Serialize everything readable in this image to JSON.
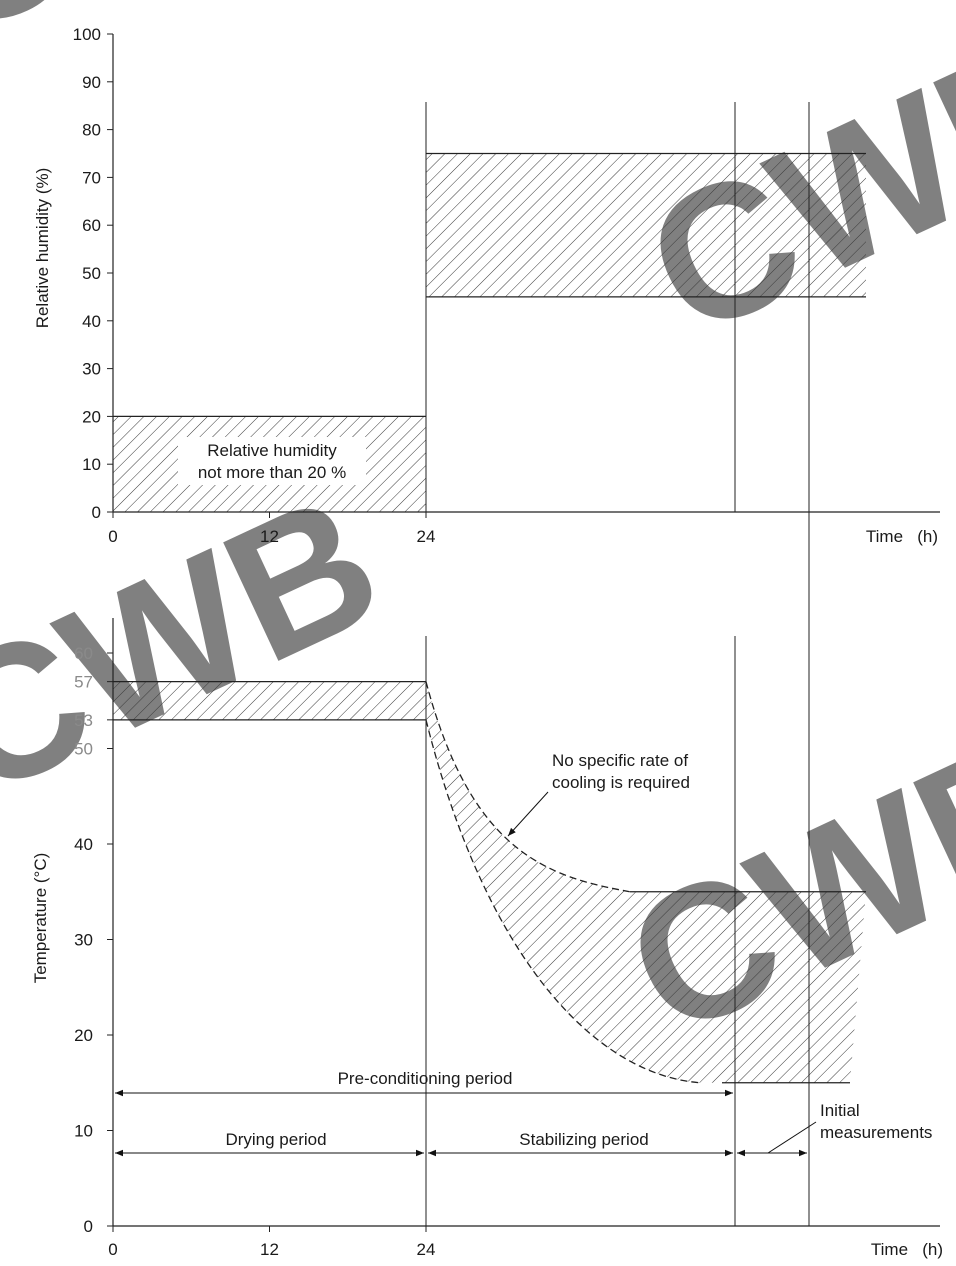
{
  "watermark": "CWB",
  "chart_data": [
    {
      "type": "area",
      "ylabel": "Relative humidity   (%)",
      "xlabel": "Time   (h)",
      "x_ticks": [
        0,
        12,
        24
      ],
      "y_ticks": [
        0,
        10,
        20,
        30,
        40,
        50,
        60,
        70,
        80,
        90,
        100
      ],
      "ylim": [
        0,
        100
      ],
      "bands": [
        {
          "x_start": 0,
          "x_end": 24,
          "lower": 0,
          "upper": 20,
          "label": "Relative humidity\nnot more than 20 %"
        },
        {
          "x_start": 24,
          "x_end": 58,
          "lower": 45,
          "upper": 75
        }
      ],
      "annotation": {
        "line1": "Relative humidity",
        "line2": "not more than 20 %"
      }
    },
    {
      "type": "area",
      "ylabel": "Temperature   (°C)",
      "xlabel": "Time   (h)",
      "x_ticks": [
        0,
        12,
        24
      ],
      "y_ticks": [
        0,
        10,
        20,
        30,
        40,
        50,
        53,
        57,
        60
      ],
      "ylim": [
        0,
        60
      ],
      "bands": [
        {
          "x_start": 0,
          "x_end": 24,
          "lower": 53,
          "upper": 57
        },
        {
          "x_start": 24,
          "x_end": 57,
          "lower_curve_end": 15,
          "upper_curve_end": 35,
          "shape": "exponential cooling"
        }
      ],
      "cooling_note": {
        "line1": "No specific rate of",
        "line2": "cooling is required"
      },
      "periods": {
        "preconditioning": "Pre-conditioning period",
        "drying": "Drying period",
        "stabilizing": "Stabilizing period",
        "initial_line1": "Initial",
        "initial_line2": "measurements"
      }
    }
  ]
}
